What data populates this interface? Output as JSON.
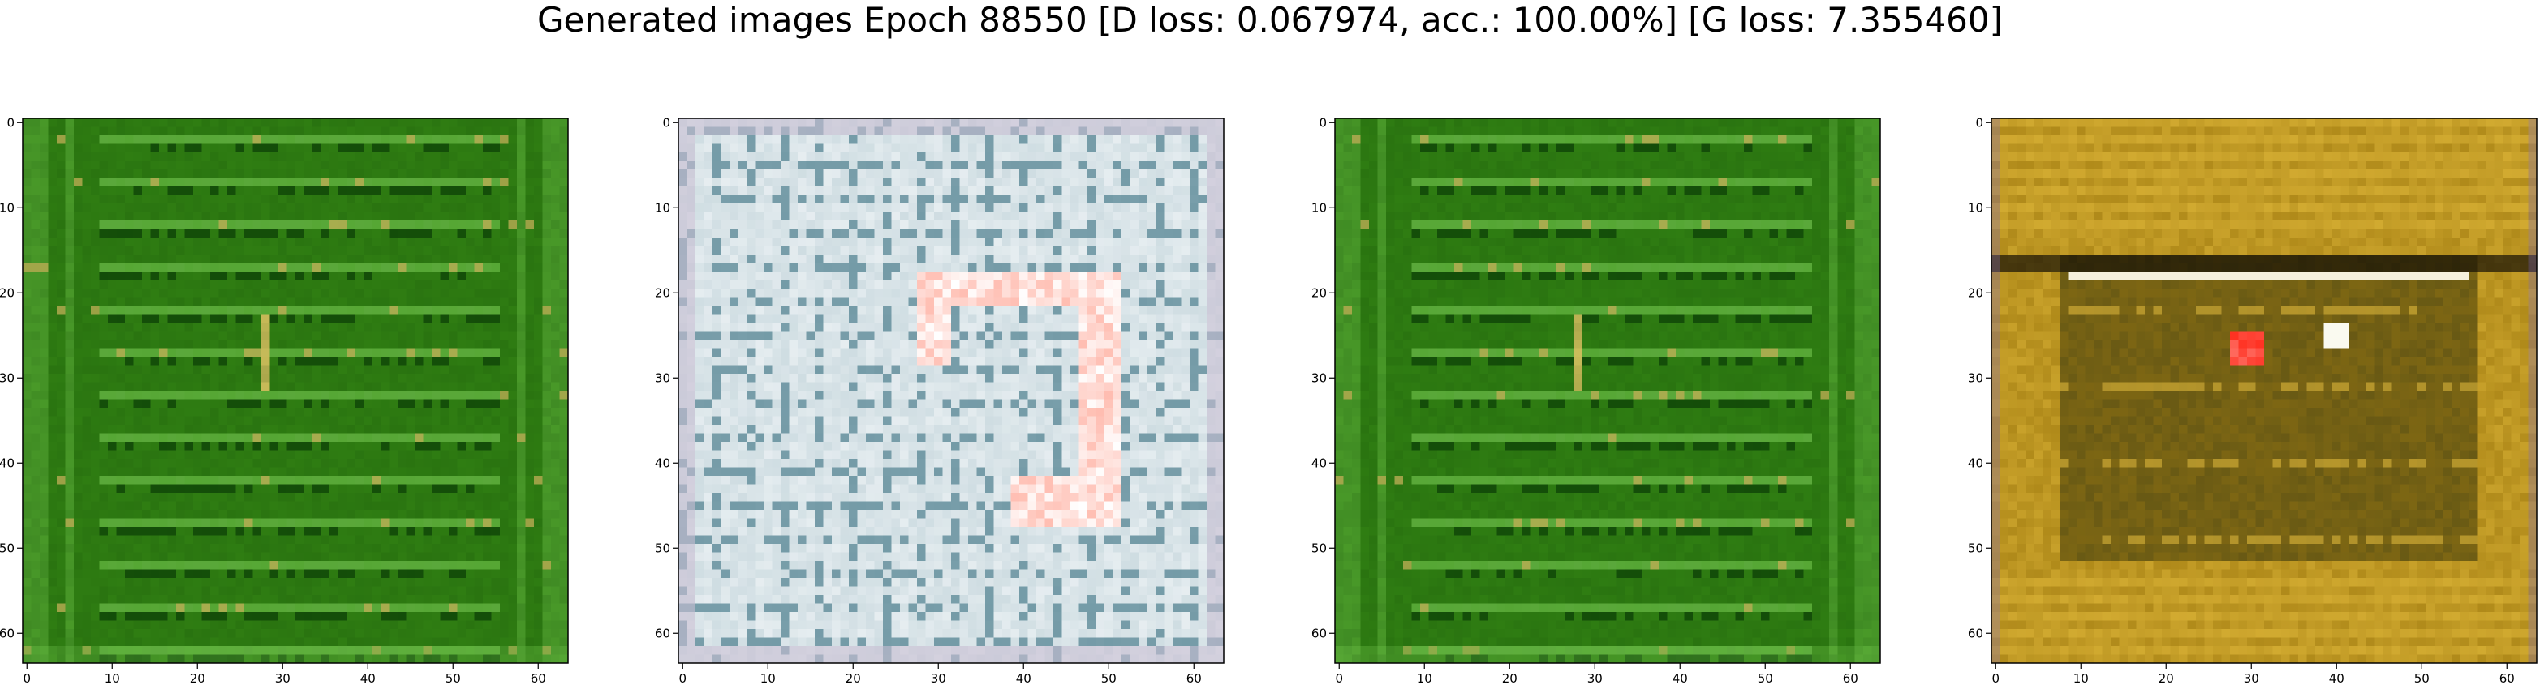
{
  "figure": {
    "title": "Generated images Epoch 88550 [D loss: 0.067974, acc.: 100.00%] [G loss: 7.355460]"
  },
  "panels": [
    {
      "name": "generated-image-1",
      "palette": "green-stripes",
      "base_color": "#2f7d12",
      "accent_colors": [
        "#0a3d06",
        "#6fc24a",
        "#d8c060"
      ]
    },
    {
      "name": "generated-image-2",
      "palette": "blue-white-red",
      "base_color": "#cfdde2",
      "accent_colors": [
        "#1f5d70",
        "#ff3b2a",
        "#ffffff"
      ]
    },
    {
      "name": "generated-image-3",
      "palette": "green-stripes",
      "base_color": "#2f7d12",
      "accent_colors": [
        "#0a3d06",
        "#6fc24a",
        "#d8c060"
      ]
    },
    {
      "name": "generated-image-4",
      "palette": "olive-gold",
      "base_color": "#b08a1a",
      "accent_colors": [
        "#3f3a0a",
        "#e0b83a",
        "#ff2a1a"
      ]
    }
  ],
  "axes": {
    "x_ticks": [
      "0",
      "10",
      "20",
      "30",
      "40",
      "50",
      "60"
    ],
    "y_ticks": [
      "0",
      "10",
      "20",
      "30",
      "40",
      "50",
      "60"
    ]
  }
}
